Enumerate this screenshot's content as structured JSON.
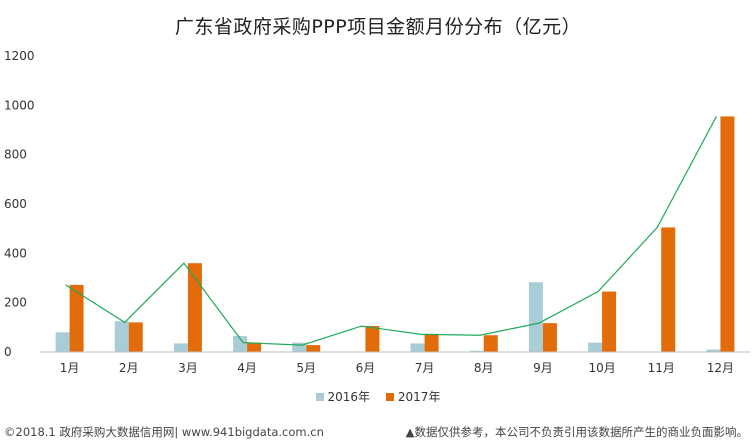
{
  "title": "广东省政府采购PPP项目金额月份分布（亿元）",
  "footer_left": "©2018.1 政府采购大数据信用网| www.941bigdata.com.cn",
  "footer_right": "▲数据仅供参考，本公司不负责引用该数据所产生的商业负面影响。",
  "colors": {
    "s2016": "#a8cdd7",
    "s2017": "#e36c0a",
    "line": "#1faa59",
    "axis": "#bfbfbf"
  },
  "chart_data": {
    "type": "bar",
    "title": "广东省政府采购PPP项目金额月份分布（亿元）",
    "categories": [
      "1月",
      "2月",
      "3月",
      "4月",
      "5月",
      "6月",
      "7月",
      "8月",
      "9月",
      "10月",
      "11月",
      "12月"
    ],
    "series": [
      {
        "name": "2016年",
        "values": [
          80,
          125,
          35,
          65,
          38,
          0,
          35,
          5,
          283,
          38,
          0,
          10
        ]
      },
      {
        "name": "2017年",
        "values": [
          272,
          120,
          360,
          38,
          28,
          105,
          72,
          68,
          117,
          245,
          505,
          955
        ]
      }
    ],
    "trend_line": {
      "series": "2017年",
      "values": [
        272,
        120,
        360,
        38,
        28,
        105,
        72,
        68,
        117,
        245,
        505,
        955
      ]
    },
    "ylim": [
      0,
      1200
    ],
    "yticks": [
      0,
      200,
      400,
      600,
      800,
      1000,
      1200
    ],
    "grid": false,
    "legend": "bottom"
  }
}
